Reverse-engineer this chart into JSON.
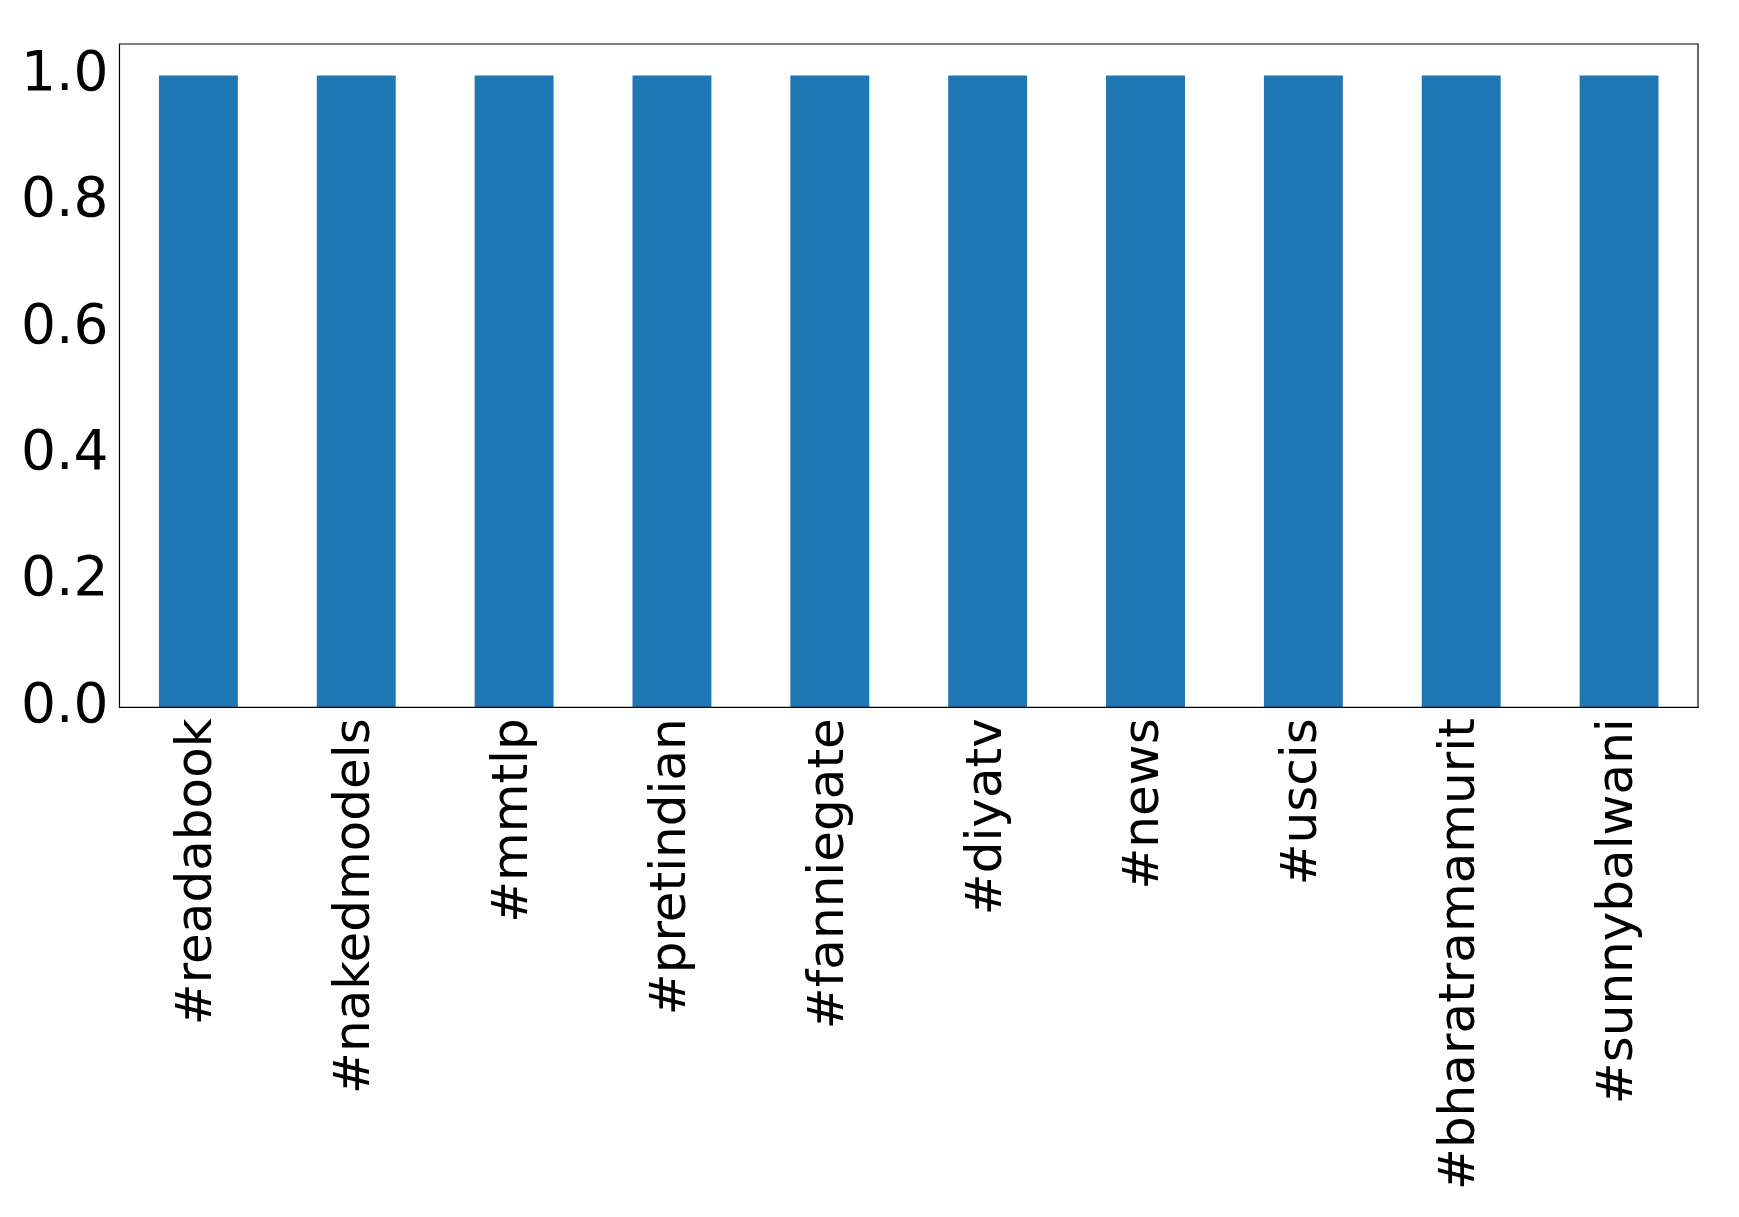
{
  "chart_data": {
    "type": "bar",
    "categories": [
      "#readabook",
      "#nakedmodels",
      "#mmtlp",
      "#pretindian",
      "#fanniegate",
      "#diyatv",
      "#news",
      "#uscis",
      "#bharatramamurit",
      "#sunnybalwani"
    ],
    "values": [
      1,
      1,
      1,
      1,
      1,
      1,
      1,
      1,
      1,
      1
    ],
    "color": "#1f77b4",
    "ylim": [
      0,
      1.05
    ],
    "yticks": [
      {
        "value": 0,
        "label": "0.0"
      },
      {
        "value": 0.2,
        "label": "0.2"
      },
      {
        "value": 0.4,
        "label": "0.4"
      },
      {
        "value": 0.6,
        "label": "0.6"
      },
      {
        "value": 0.8,
        "label": "0.8"
      },
      {
        "value": 1,
        "label": "1.0"
      }
    ],
    "grid": false,
    "legend": false
  }
}
